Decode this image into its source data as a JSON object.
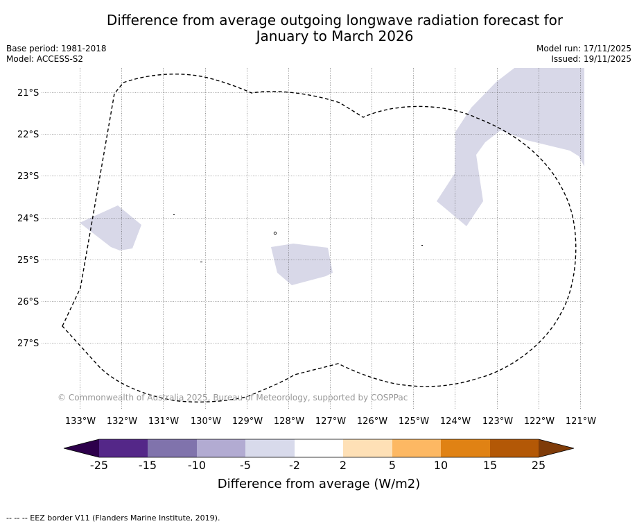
{
  "title": {
    "line1": "Difference from average outgoing longwave radiation forecast for",
    "line2": "January to March 2026"
  },
  "meta": {
    "base_period": "Base period: 1981-2018",
    "model": "Model: ACCESS-S2",
    "model_run": "Model run: 17/11/2025",
    "issued": "Issued: 19/11/2025"
  },
  "map": {
    "lon_labels": [
      "133°W",
      "132°W",
      "131°W",
      "130°W",
      "129°W",
      "128°W",
      "127°W",
      "126°W",
      "125°W",
      "124°W",
      "123°W",
      "122°W",
      "121°W"
    ],
    "lat_labels": [
      "21°S",
      "22°S",
      "23°S",
      "24°S",
      "25°S",
      "26°S",
      "27°S"
    ],
    "copyright": "© Commonwealth of Australia 2025, Bureau of Meteorology, supported by COSPPac",
    "anomaly_category": "-5 to -2 W/m2",
    "anomaly_color": "#d8d8e8",
    "eez_label": "EEZ border"
  },
  "colorbar": {
    "label": "Difference from average (W/m2)",
    "ticks": [
      "-25",
      "-15",
      "-10",
      "-5",
      "-2",
      "2",
      "5",
      "10",
      "15",
      "25"
    ],
    "colors": [
      "#2d004b",
      "#542788",
      "#8073ac",
      "#b2abd2",
      "#d8daeb",
      "#ffffff",
      "#fee0b6",
      "#fdb863",
      "#e08214",
      "#b35806",
      "#7f3b08"
    ]
  },
  "footer": {
    "source": "--  --  -- EEZ border V11 (Flanders Marine Institute, 2019)."
  }
}
